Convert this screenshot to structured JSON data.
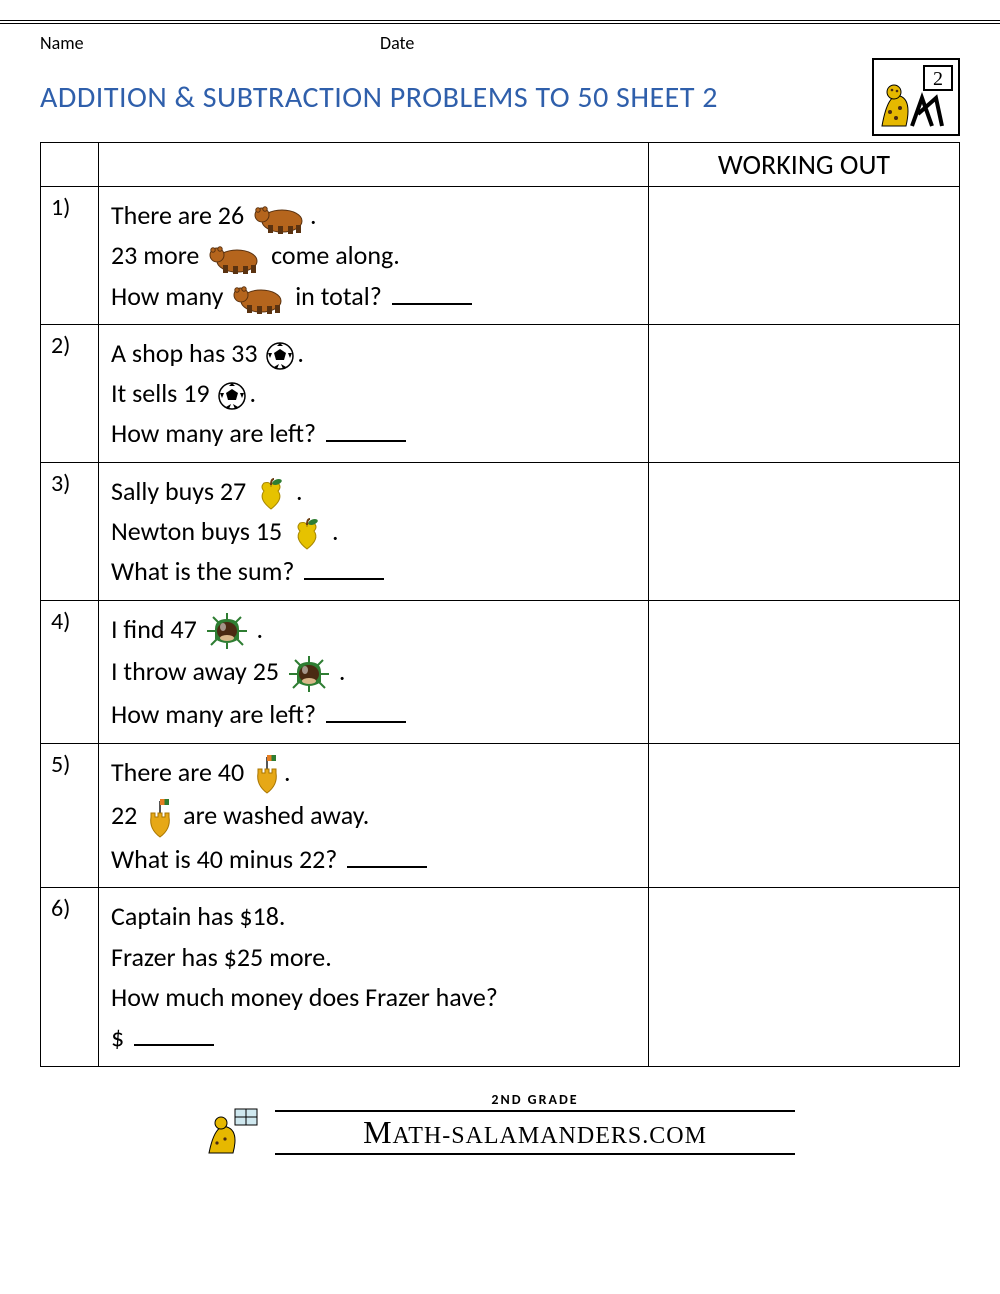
{
  "header": {
    "name_label": "Name",
    "date_label": "Date"
  },
  "title": "ADDITION & SUBTRACTION PROBLEMS TO 50 SHEET 2",
  "working_out_label": "WORKING OUT",
  "colors": {
    "title": "#2F5FAB",
    "bear_body": "#B5651D",
    "bear_dark": "#5A3210",
    "ball_white": "#FFFFFF",
    "ball_black": "#000000",
    "apple_body": "#E6C200",
    "apple_leaf": "#2E7D32",
    "apple_stem": "#6B3E12",
    "chestnut_body": "#4A2A12",
    "chestnut_shell": "#2E7D32",
    "castle_body": "#E6A817",
    "flag_g": "#2E7D32",
    "flag_o": "#E67E22",
    "sal_body": "#E6B800",
    "sal_spot": "#4A2A12"
  },
  "problems": [
    {
      "num": "1)",
      "lines": [
        [
          {
            "t": "There are 26 "
          },
          {
            "icon": "bear"
          },
          {
            "t": "."
          }
        ],
        [
          {
            "t": "23 more "
          },
          {
            "icon": "bear"
          },
          {
            "t": " come along."
          }
        ],
        [
          {
            "t": "How many "
          },
          {
            "icon": "bear"
          },
          {
            "t": " in total? "
          },
          {
            "blank": true
          }
        ]
      ]
    },
    {
      "num": "2)",
      "lines": [
        [
          {
            "t": "A shop has 33 "
          },
          {
            "icon": "ball"
          },
          {
            "t": "."
          }
        ],
        [
          {
            "t": "It sells 19 "
          },
          {
            "icon": "ball"
          },
          {
            "t": "."
          }
        ],
        [
          {
            "t": "How many  are left? "
          },
          {
            "blank": true
          }
        ]
      ]
    },
    {
      "num": "3)",
      "lines": [
        [
          {
            "t": "Sally buys 27 "
          },
          {
            "icon": "apple"
          },
          {
            "t": " ."
          }
        ],
        [
          {
            "t": "Newton buys 15 "
          },
          {
            "icon": "apple"
          },
          {
            "t": " ."
          }
        ],
        [
          {
            "t": "What is the sum? "
          },
          {
            "blank": true
          }
        ]
      ]
    },
    {
      "num": "4)",
      "lines": [
        [
          {
            "t": "I find 47 "
          },
          {
            "icon": "chestnut"
          },
          {
            "t": " ."
          }
        ],
        [
          {
            "t": "I throw away 25 "
          },
          {
            "icon": "chestnut"
          },
          {
            "t": " ."
          }
        ],
        [
          {
            "t": "How many are left? "
          },
          {
            "blank": true
          }
        ]
      ]
    },
    {
      "num": "5)",
      "lines": [
        [
          {
            "t": "There are 40 "
          },
          {
            "icon": "castle"
          },
          {
            "t": "."
          }
        ],
        [
          {
            "t": "22 "
          },
          {
            "icon": "castle"
          },
          {
            "t": " are washed away."
          }
        ],
        [
          {
            "t": "What is 40 minus 22? "
          },
          {
            "blank": true
          }
        ]
      ]
    },
    {
      "num": "6)",
      "lines": [
        [
          {
            "t": "Captain has $18."
          }
        ],
        [
          {
            "t": "Frazer has $25 more."
          }
        ],
        [
          {
            "t": "How much money does Frazer have?"
          }
        ],
        [
          {
            "t": "$ "
          },
          {
            "blank": true
          }
        ]
      ]
    }
  ],
  "footer": {
    "grade": "2ND GRADE",
    "brand_prefix": "M",
    "brand": "ATH-SALAMANDERS.COM"
  }
}
